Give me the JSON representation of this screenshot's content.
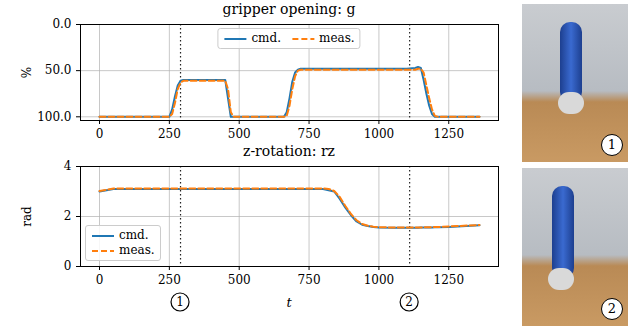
{
  "chart_data": [
    {
      "type": "line",
      "title": "gripper opening: g",
      "ylabel": "%",
      "x": [
        0,
        50,
        100,
        250,
        260,
        270,
        280,
        290,
        300,
        450,
        460,
        470,
        480,
        660,
        670,
        680,
        690,
        700,
        710,
        720,
        800,
        820,
        840,
        860,
        880,
        900,
        920,
        940,
        960,
        980,
        1000,
        1050,
        1100,
        1130,
        1140,
        1150,
        1160,
        1170,
        1180,
        1190,
        1200,
        1210,
        1250,
        1360
      ],
      "series": [
        {
          "name": "cmd.",
          "color": "#1f77b4",
          "line_style": "solid",
          "values": [
            100,
            100,
            100,
            100,
            92,
            78,
            66,
            61,
            60,
            60,
            80,
            100,
            100,
            100,
            95,
            80,
            62,
            52,
            49,
            48,
            48,
            48,
            48,
            48,
            48,
            48,
            48,
            48,
            48,
            48,
            48,
            48,
            48,
            47,
            46,
            47,
            60,
            75,
            88,
            97,
            100,
            100,
            100,
            100
          ]
        },
        {
          "name": "meas.",
          "color": "#ff7f0e",
          "line_style": "dashed",
          "values": [
            100,
            100,
            100,
            100,
            97,
            85,
            70,
            63,
            61,
            61,
            70,
            95,
            100,
            100,
            99,
            88,
            70,
            56,
            50,
            49,
            49,
            49,
            49,
            49,
            49,
            49,
            49,
            49,
            49,
            49,
            49,
            49,
            49,
            49,
            48,
            48,
            52,
            66,
            80,
            92,
            99,
            100,
            100,
            100
          ]
        }
      ],
      "xlim": [
        -68,
        1428
      ],
      "xticks": [
        0,
        250,
        500,
        750,
        1000,
        1250
      ],
      "ylim": [
        104,
        0
      ],
      "yticks": [
        {
          "value": 0,
          "label": "0.0"
        },
        {
          "value": 50,
          "label": "50.0"
        },
        {
          "value": 100,
          "label": "100.0"
        }
      ],
      "grid": true,
      "legend": "upper center"
    },
    {
      "type": "line",
      "title": "z-rotation: rz",
      "ylabel": "rad",
      "xlabel": "t",
      "x": [
        0,
        50,
        100,
        250,
        260,
        270,
        280,
        290,
        300,
        450,
        460,
        470,
        480,
        660,
        670,
        680,
        690,
        700,
        710,
        720,
        800,
        820,
        840,
        860,
        880,
        900,
        920,
        940,
        960,
        980,
        1000,
        1050,
        1100,
        1130,
        1140,
        1150,
        1160,
        1170,
        1180,
        1190,
        1200,
        1210,
        1250,
        1360
      ],
      "series": [
        {
          "name": "cmd.",
          "color": "#1f77b4",
          "line_style": "solid",
          "values": [
            3.0,
            3.1,
            3.1,
            3.1,
            3.1,
            3.1,
            3.1,
            3.1,
            3.1,
            3.1,
            3.1,
            3.1,
            3.1,
            3.1,
            3.1,
            3.1,
            3.1,
            3.1,
            3.1,
            3.1,
            3.1,
            3.05,
            3.0,
            2.7,
            2.35,
            2.05,
            1.8,
            1.67,
            1.62,
            1.58,
            1.56,
            1.55,
            1.55,
            1.55,
            1.55,
            1.56,
            1.56,
            1.56,
            1.56,
            1.56,
            1.57,
            1.57,
            1.58,
            1.65
          ]
        },
        {
          "name": "meas.",
          "color": "#ff7f0e",
          "line_style": "dashed",
          "values": [
            3.02,
            3.12,
            3.12,
            3.12,
            3.12,
            3.12,
            3.12,
            3.12,
            3.12,
            3.12,
            3.12,
            3.12,
            3.12,
            3.12,
            3.12,
            3.12,
            3.12,
            3.12,
            3.12,
            3.12,
            3.12,
            3.1,
            3.02,
            2.78,
            2.42,
            2.1,
            1.85,
            1.7,
            1.63,
            1.59,
            1.57,
            1.56,
            1.56,
            1.56,
            1.56,
            1.56,
            1.57,
            1.57,
            1.57,
            1.57,
            1.58,
            1.58,
            1.6,
            1.66
          ]
        }
      ],
      "xlim": [
        -68,
        1428
      ],
      "xticks": [
        0,
        250,
        500,
        750,
        1000,
        1250
      ],
      "ylim": [
        0,
        4
      ],
      "yticks": [
        0,
        2,
        4
      ],
      "grid": true,
      "legend": "lower left",
      "annotations": [
        {
          "x": 290,
          "label": "1"
        },
        {
          "x": 1110,
          "label": "2"
        }
      ]
    }
  ],
  "images": [
    {
      "label": "1"
    },
    {
      "label": "2"
    }
  ]
}
